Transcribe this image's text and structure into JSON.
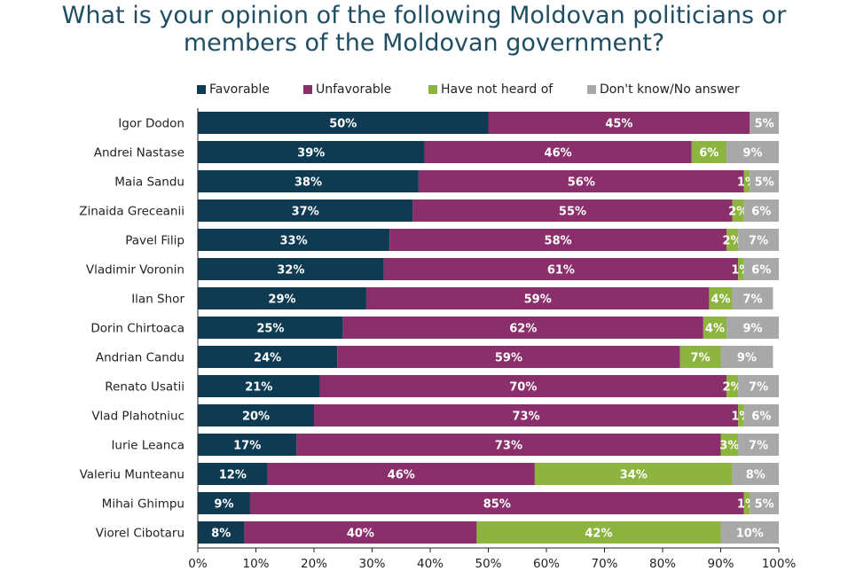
{
  "chart_data": {
    "type": "bar",
    "orientation": "horizontal",
    "stacked": true,
    "title": "What is your opinion of the following Moldovan politicians or members of the Moldovan government?",
    "title_lines": [
      "What is your opinion of the following Moldovan politicians or",
      "members of the Moldovan government?"
    ],
    "categories": [
      "Igor Dodon",
      "Andrei Nastase",
      "Maia Sandu",
      "Zinaida Greceanii",
      "Pavel Filip",
      "Vladimir Voronin",
      "Ilan Shor",
      "Dorin Chirtoaca",
      "Andrian Candu",
      "Renato Usatii",
      "Vlad  Plahotniuc",
      "Iurie Leanca",
      "Valeriu Munteanu",
      "Mihai Ghimpu",
      "Viorel Cibotaru"
    ],
    "series": [
      {
        "name": "Favorable",
        "color": "#0e3a52",
        "values": [
          50,
          39,
          38,
          37,
          33,
          32,
          29,
          25,
          24,
          21,
          20,
          17,
          12,
          9,
          8
        ]
      },
      {
        "name": "Unfavorable",
        "color": "#8a2f6b",
        "values": [
          45,
          46,
          56,
          55,
          58,
          61,
          59,
          62,
          59,
          70,
          73,
          73,
          46,
          85,
          40
        ]
      },
      {
        "name": "Have not heard of",
        "color": "#8cb43e",
        "values": [
          0,
          6,
          1,
          2,
          2,
          1,
          4,
          4,
          7,
          2,
          1,
          3,
          34,
          1,
          42
        ]
      },
      {
        "name": "Don't know/No answer",
        "color": "#a8a8a8",
        "values": [
          5,
          9,
          5,
          6,
          7,
          6,
          7,
          9,
          9,
          7,
          6,
          7,
          8,
          5,
          10
        ]
      }
    ],
    "xlim": [
      0,
      100
    ],
    "xticks": [
      "0%",
      "10%",
      "20%",
      "30%",
      "40%",
      "50%",
      "60%",
      "70%",
      "80%",
      "90%",
      "100%"
    ],
    "value_suffix": "%",
    "legend_position": "top",
    "grid": false
  }
}
